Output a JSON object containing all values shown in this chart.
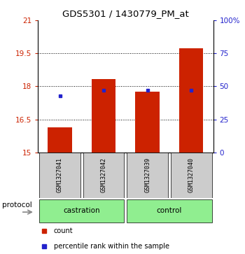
{
  "title": "GDS5301 / 1430779_PM_at",
  "samples": [
    "GSM1327041",
    "GSM1327042",
    "GSM1327039",
    "GSM1327040"
  ],
  "groups": [
    "castration",
    "castration",
    "control",
    "control"
  ],
  "bar_bottom": 15,
  "bar_tops": [
    16.15,
    18.32,
    17.77,
    19.73
  ],
  "blue_dot_percentile": [
    43,
    47,
    47,
    47
  ],
  "ylim_left": [
    15,
    21
  ],
  "ylim_right": [
    0,
    100
  ],
  "yticks_left": [
    15,
    16.5,
    18,
    19.5,
    21
  ],
  "ytick_labels_left": [
    "15",
    "16.5",
    "18",
    "19.5",
    "21"
  ],
  "yticks_right": [
    0,
    25,
    50,
    75,
    100
  ],
  "ytick_labels_right": [
    "0",
    "25",
    "50",
    "75",
    "100%"
  ],
  "bar_color": "#CC2200",
  "dot_color": "#2222CC",
  "protocol_label": "protocol",
  "group_label_castration": "castration",
  "group_label_control": "control",
  "bar_width": 0.55,
  "x_positions": [
    1,
    2,
    3,
    4
  ],
  "sample_box_color": "#CCCCCC",
  "group_box_color": "#90EE90"
}
